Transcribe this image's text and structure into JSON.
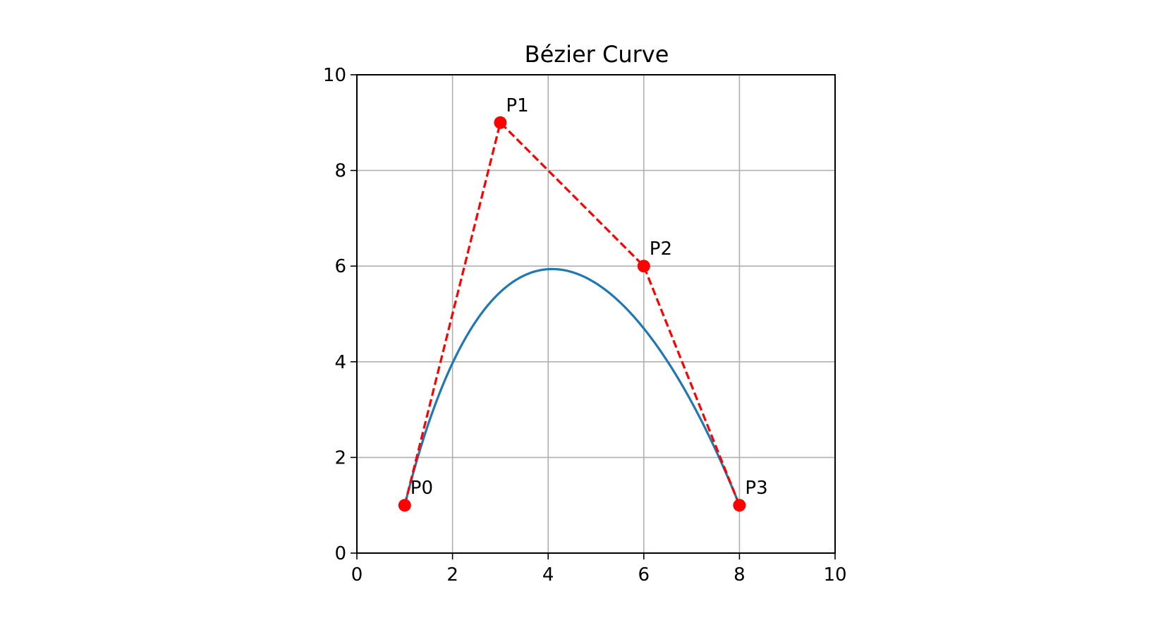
{
  "chart_data": {
    "type": "line",
    "title": "Bézier Curve",
    "xlabel": "",
    "ylabel": "",
    "xlim": [
      0,
      10
    ],
    "ylim": [
      0,
      10
    ],
    "xticks": [
      "0",
      "2",
      "4",
      "6",
      "8",
      "10"
    ],
    "yticks": [
      "0",
      "2",
      "4",
      "6",
      "8",
      "10"
    ],
    "grid": true,
    "legend": null,
    "control_points": [
      {
        "label": "P0",
        "x": 1,
        "y": 1
      },
      {
        "label": "P1",
        "x": 3,
        "y": 9
      },
      {
        "label": "P2",
        "x": 6,
        "y": 6
      },
      {
        "label": "P3",
        "x": 8,
        "y": 1
      }
    ],
    "series": [
      {
        "kind": "bezier-curve",
        "style": "solid",
        "color": "#1f77b4"
      },
      {
        "kind": "control-polygon",
        "style": "dashed",
        "color": "#ff0000",
        "marker": "circle"
      }
    ]
  }
}
